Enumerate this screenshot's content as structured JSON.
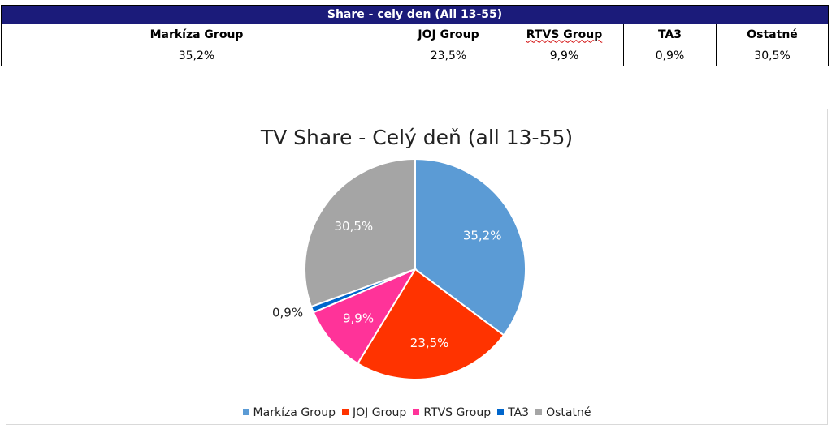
{
  "table": {
    "title": "Share - cely den (All 13-55)",
    "headers": [
      "Markíza Group",
      "JOJ Group",
      "RTVS Group",
      "TA3",
      "Ostatné"
    ],
    "values": [
      "35,2%",
      "23,5%",
      "9,9%",
      "0,9%",
      "30,5%"
    ]
  },
  "chart_data": {
    "type": "pie",
    "title": "TV Share - Celý deň (all 13-55)",
    "categories": [
      "Markíza Group",
      "JOJ Group",
      "RTVS Group",
      "TA3",
      "Ostatné"
    ],
    "values": [
      35.2,
      23.5,
      9.9,
      0.9,
      30.5
    ],
    "labels": [
      "35,2%",
      "23,5%",
      "9,9%",
      "0,9%",
      "30,5%"
    ],
    "colors": [
      "#5b9bd5",
      "#ff3300",
      "#ff3399",
      "#0066cc",
      "#a5a5a5"
    ],
    "legend_position": "bottom"
  }
}
